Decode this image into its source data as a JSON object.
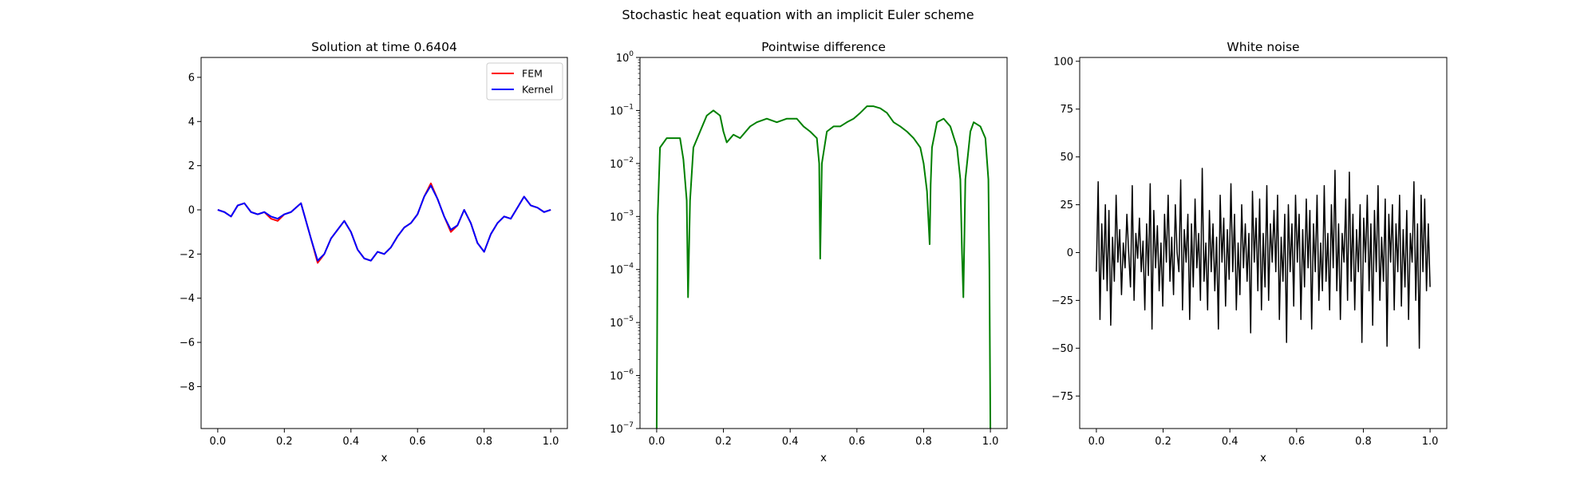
{
  "suptitle": "Stochastic heat equation with an implicit Euler scheme",
  "colors": {
    "fem": "#ff0000",
    "kernel": "#0000ff",
    "difference": "#008000",
    "noise": "#000000",
    "axes": "#000000",
    "background": "#ffffff"
  },
  "chart_data": [
    {
      "type": "line",
      "title": "Solution at time 0.6404",
      "xlabel": "x",
      "ylabel": "",
      "xlim": [
        -0.05,
        1.05
      ],
      "ylim": [
        -9.9,
        6.9
      ],
      "xticks": [
        0.0,
        0.2,
        0.4,
        0.6,
        0.8,
        1.0
      ],
      "xtick_labels": [
        "0.0",
        "0.2",
        "0.4",
        "0.6",
        "0.8",
        "1.0"
      ],
      "yticks": [
        -8,
        -6,
        -4,
        -2,
        0,
        2,
        4,
        6
      ],
      "ytick_labels": [
        "−8",
        "−6",
        "−4",
        "−2",
        "0",
        "2",
        "4",
        "6"
      ],
      "grid": false,
      "legend": "top-right",
      "series": [
        {
          "name": "FEM",
          "color": "#ff0000",
          "x": [
            0.0,
            0.02,
            0.04,
            0.06,
            0.08,
            0.1,
            0.12,
            0.14,
            0.16,
            0.18,
            0.2,
            0.22,
            0.25,
            0.28,
            0.3,
            0.32,
            0.34,
            0.36,
            0.38,
            0.4,
            0.42,
            0.44,
            0.46,
            0.48,
            0.5,
            0.52,
            0.54,
            0.56,
            0.58,
            0.6,
            0.62,
            0.64,
            0.66,
            0.68,
            0.7,
            0.72,
            0.74,
            0.76,
            0.78,
            0.8,
            0.82,
            0.84,
            0.86,
            0.88,
            0.9,
            0.92,
            0.94,
            0.96,
            0.98,
            1.0
          ],
          "values": [
            0.0,
            -0.1,
            -0.3,
            0.2,
            0.3,
            -0.1,
            -0.2,
            -0.1,
            -0.4,
            -0.5,
            -0.2,
            -0.1,
            0.3,
            -1.3,
            -2.4,
            -2.0,
            -1.3,
            -0.9,
            -0.5,
            -1.0,
            -1.8,
            -2.2,
            -2.3,
            -1.9,
            -2.0,
            -1.7,
            -1.2,
            -0.8,
            -0.6,
            -0.2,
            0.6,
            1.2,
            0.5,
            -0.3,
            -1.0,
            -0.7,
            0.0,
            -0.6,
            -1.5,
            -1.9,
            -1.1,
            -0.6,
            -0.3,
            -0.4,
            0.1,
            0.6,
            0.2,
            0.1,
            -0.1,
            0.0
          ]
        },
        {
          "name": "Kernel",
          "color": "#0000ff",
          "x": [
            0.0,
            0.02,
            0.04,
            0.06,
            0.08,
            0.1,
            0.12,
            0.14,
            0.16,
            0.18,
            0.2,
            0.22,
            0.25,
            0.28,
            0.3,
            0.32,
            0.34,
            0.36,
            0.38,
            0.4,
            0.42,
            0.44,
            0.46,
            0.48,
            0.5,
            0.52,
            0.54,
            0.56,
            0.58,
            0.6,
            0.62,
            0.64,
            0.66,
            0.68,
            0.7,
            0.72,
            0.74,
            0.76,
            0.78,
            0.8,
            0.82,
            0.84,
            0.86,
            0.88,
            0.9,
            0.92,
            0.94,
            0.96,
            0.98,
            1.0
          ],
          "values": [
            0.0,
            -0.1,
            -0.3,
            0.2,
            0.3,
            -0.1,
            -0.2,
            -0.1,
            -0.3,
            -0.4,
            -0.2,
            -0.1,
            0.3,
            -1.3,
            -2.3,
            -2.0,
            -1.3,
            -0.9,
            -0.5,
            -1.0,
            -1.8,
            -2.2,
            -2.3,
            -1.9,
            -2.0,
            -1.7,
            -1.2,
            -0.8,
            -0.6,
            -0.2,
            0.6,
            1.1,
            0.5,
            -0.3,
            -0.9,
            -0.7,
            0.0,
            -0.6,
            -1.5,
            -1.9,
            -1.1,
            -0.6,
            -0.3,
            -0.4,
            0.1,
            0.6,
            0.2,
            0.1,
            -0.1,
            0.0
          ]
        }
      ]
    },
    {
      "type": "line",
      "title": "Pointwise difference",
      "xlabel": "x",
      "ylabel": "",
      "yscale": "log",
      "xlim": [
        -0.05,
        1.05
      ],
      "ylim": [
        1e-07,
        1
      ],
      "xticks": [
        0.0,
        0.2,
        0.4,
        0.6,
        0.8,
        1.0
      ],
      "xtick_labels": [
        "0.0",
        "0.2",
        "0.4",
        "0.6",
        "0.8",
        "1.0"
      ],
      "yticks": [
        1e-07,
        1e-06,
        1e-05,
        0.0001,
        0.001,
        0.01,
        0.1,
        1
      ],
      "ytick_labels": [
        {
          "base": "10",
          "exp": "−7"
        },
        {
          "base": "10",
          "exp": "−6"
        },
        {
          "base": "10",
          "exp": "−5"
        },
        {
          "base": "10",
          "exp": "−4"
        },
        {
          "base": "10",
          "exp": "−3"
        },
        {
          "base": "10",
          "exp": "−2"
        },
        {
          "base": "10",
          "exp": "−1"
        },
        {
          "base": "10",
          "exp": "0"
        }
      ],
      "grid": false,
      "series": [
        {
          "color": "#008000",
          "x": [
            0.0,
            0.003,
            0.01,
            0.03,
            0.05,
            0.07,
            0.08,
            0.09,
            0.094,
            0.1,
            0.11,
            0.13,
            0.15,
            0.17,
            0.19,
            0.2,
            0.21,
            0.23,
            0.25,
            0.28,
            0.3,
            0.33,
            0.36,
            0.39,
            0.42,
            0.44,
            0.46,
            0.48,
            0.487,
            0.49,
            0.495,
            0.51,
            0.53,
            0.55,
            0.57,
            0.59,
            0.61,
            0.63,
            0.65,
            0.67,
            0.69,
            0.71,
            0.73,
            0.75,
            0.77,
            0.79,
            0.8,
            0.81,
            0.818,
            0.821,
            0.825,
            0.84,
            0.86,
            0.88,
            0.9,
            0.91,
            0.915,
            0.919,
            0.925,
            0.94,
            0.95,
            0.97,
            0.985,
            0.994,
            0.997,
            1.0
          ],
          "values": [
            1e-07,
            0.001,
            0.02,
            0.03,
            0.03,
            0.03,
            0.012,
            0.002,
            3e-05,
            0.002,
            0.02,
            0.04,
            0.08,
            0.1,
            0.08,
            0.04,
            0.025,
            0.035,
            0.03,
            0.05,
            0.06,
            0.07,
            0.06,
            0.07,
            0.07,
            0.05,
            0.04,
            0.03,
            0.01,
            0.00016,
            0.01,
            0.04,
            0.05,
            0.05,
            0.06,
            0.07,
            0.09,
            0.12,
            0.12,
            0.11,
            0.09,
            0.06,
            0.05,
            0.04,
            0.03,
            0.02,
            0.01,
            0.003,
            0.0003,
            0.004,
            0.02,
            0.06,
            0.07,
            0.05,
            0.02,
            0.005,
            0.0002,
            3e-05,
            0.005,
            0.04,
            0.06,
            0.05,
            0.03,
            0.005,
            0.0001,
            1e-07
          ]
        }
      ]
    },
    {
      "type": "line",
      "title": "White noise",
      "xlabel": "x",
      "ylabel": "",
      "xlim": [
        -0.05,
        1.05
      ],
      "ylim": [
        -92,
        102
      ],
      "xticks": [
        0.0,
        0.2,
        0.4,
        0.6,
        0.8,
        1.0
      ],
      "xtick_labels": [
        "0.0",
        "0.2",
        "0.4",
        "0.6",
        "0.8",
        "1.0"
      ],
      "yticks": [
        -75,
        -50,
        -25,
        0,
        25,
        50,
        75,
        100
      ],
      "ytick_labels": [
        "−75",
        "−50",
        "−25",
        "0",
        "25",
        "50",
        "75",
        "100"
      ],
      "grid": false,
      "series": [
        {
          "color": "#000000",
          "x_range": [
            0.0,
            1.0
          ],
          "values": [
            -10,
            37,
            -35,
            15,
            -14,
            25,
            -20,
            22,
            -38,
            8,
            -15,
            30,
            -5,
            12,
            -22,
            5,
            -8,
            20,
            0,
            -18,
            35,
            -25,
            10,
            -3,
            18,
            -10,
            6,
            -30,
            15,
            -12,
            36,
            -40,
            22,
            -8,
            14,
            -20,
            5,
            -28,
            20,
            -5,
            30,
            -15,
            8,
            -22,
            25,
            0,
            -10,
            38,
            -30,
            12,
            -5,
            20,
            -35,
            15,
            -18,
            28,
            -8,
            10,
            -25,
            44,
            -15,
            5,
            -30,
            22,
            -10,
            15,
            -20,
            8,
            -40,
            30,
            -5,
            18,
            -28,
            12,
            -14,
            36,
            -10,
            20,
            -30,
            5,
            -22,
            25,
            -8,
            15,
            -15,
            10,
            -42,
            32,
            -5,
            18,
            -20,
            28,
            -30,
            10,
            -18,
            35,
            -25,
            15,
            -5,
            22,
            -10,
            30,
            -35,
            8,
            -15,
            20,
            -47,
            25,
            -10,
            15,
            -28,
            30,
            -5,
            20,
            -35,
            12,
            -18,
            28,
            -8,
            22,
            -40,
            15,
            -10,
            30,
            -25,
            5,
            -20,
            35,
            -15,
            10,
            -30,
            25,
            -8,
            43,
            -20,
            15,
            -35,
            10,
            -5,
            28,
            -25,
            42,
            -15,
            20,
            -30,
            12,
            -10,
            25,
            -47,
            18,
            -5,
            30,
            -20,
            15,
            -38,
            22,
            -10,
            35,
            -25,
            8,
            -15,
            28,
            -49,
            20,
            -5,
            25,
            -30,
            15,
            -10,
            30,
            -28,
            12,
            -18,
            22,
            -35,
            10,
            -5,
            37,
            -25,
            15,
            -50,
            30,
            -10,
            28,
            -20,
            15,
            -18
          ]
        }
      ]
    }
  ]
}
